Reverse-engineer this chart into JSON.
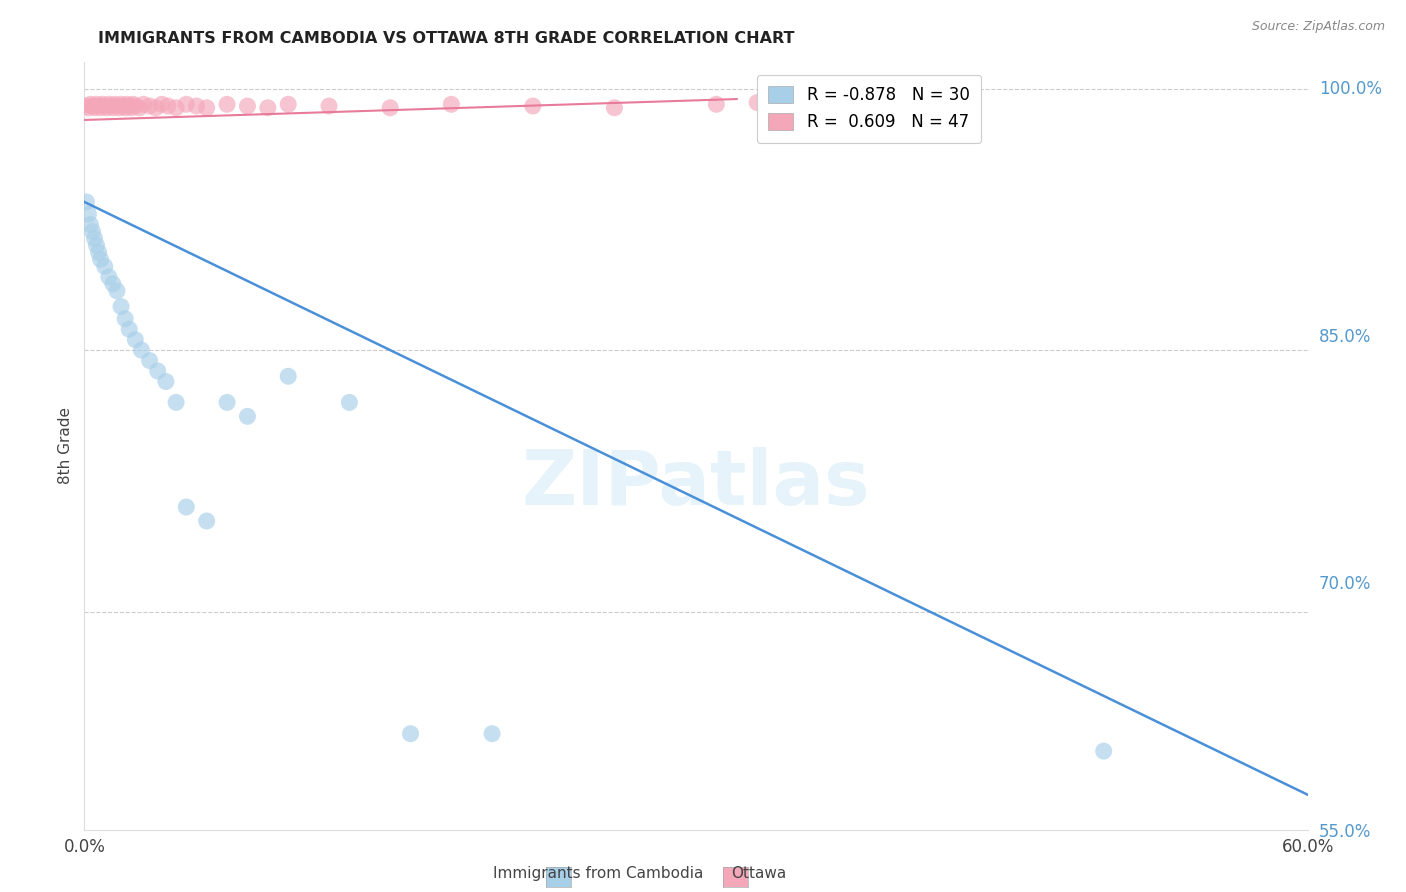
{
  "title": "IMMIGRANTS FROM CAMBODIA VS OTTAWA 8TH GRADE CORRELATION CHART",
  "source": "Source: ZipAtlas.com",
  "ylabel": "8th Grade",
  "yticks_right": [
    1.0,
    0.85,
    0.7,
    0.55
  ],
  "ytick_labels_right": [
    "100.0%",
    "85.0%",
    "70.0%",
    "55.0%"
  ],
  "legend_label1": "Immigrants from Cambodia",
  "legend_label2": "Ottawa",
  "R1": -0.878,
  "N1": 30,
  "R2": 0.609,
  "N2": 47,
  "blue_color": "#a8cfe8",
  "pink_color": "#f4a7b9",
  "blue_line_color": "#4a90d9",
  "pink_line_color": "#e87a9a",
  "xmin": 0.0,
  "xmax": 0.6,
  "ymin": 0.575,
  "ymax": 1.015,
  "blue_line_x0": 0.0,
  "blue_line_y0": 0.935,
  "blue_line_x1": 0.6,
  "blue_line_y1": 0.595,
  "pink_line_x0": 0.0,
  "pink_line_y0": 0.982,
  "pink_line_x1": 0.32,
  "pink_line_y1": 0.994,
  "blue_x": [
    0.001,
    0.002,
    0.003,
    0.004,
    0.005,
    0.006,
    0.007,
    0.008,
    0.01,
    0.012,
    0.014,
    0.016,
    0.018,
    0.02,
    0.022,
    0.025,
    0.028,
    0.032,
    0.036,
    0.04,
    0.045,
    0.05,
    0.06,
    0.07,
    0.08,
    0.1,
    0.13,
    0.16,
    0.2,
    0.5
  ],
  "blue_y": [
    0.935,
    0.928,
    0.922,
    0.918,
    0.914,
    0.91,
    0.906,
    0.902,
    0.898,
    0.892,
    0.888,
    0.884,
    0.875,
    0.868,
    0.862,
    0.856,
    0.85,
    0.844,
    0.838,
    0.832,
    0.82,
    0.76,
    0.752,
    0.82,
    0.812,
    0.835,
    0.82,
    0.63,
    0.63,
    0.62
  ],
  "pink_x": [
    0.001,
    0.002,
    0.003,
    0.004,
    0.005,
    0.006,
    0.007,
    0.008,
    0.009,
    0.01,
    0.011,
    0.012,
    0.013,
    0.014,
    0.015,
    0.016,
    0.017,
    0.018,
    0.019,
    0.02,
    0.021,
    0.022,
    0.023,
    0.024,
    0.025,
    0.027,
    0.029,
    0.032,
    0.035,
    0.038,
    0.041,
    0.045,
    0.05,
    0.055,
    0.06,
    0.07,
    0.08,
    0.09,
    0.1,
    0.12,
    0.15,
    0.18,
    0.22,
    0.26,
    0.31,
    0.33,
    0.35
  ],
  "pink_y": [
    0.99,
    0.989,
    0.991,
    0.99,
    0.989,
    0.991,
    0.99,
    0.989,
    0.991,
    0.99,
    0.989,
    0.991,
    0.99,
    0.989,
    0.991,
    0.99,
    0.989,
    0.991,
    0.99,
    0.989,
    0.991,
    0.99,
    0.989,
    0.991,
    0.99,
    0.989,
    0.991,
    0.99,
    0.989,
    0.991,
    0.99,
    0.989,
    0.991,
    0.99,
    0.989,
    0.991,
    0.99,
    0.989,
    0.991,
    0.99,
    0.989,
    0.991,
    0.99,
    0.989,
    0.991,
    0.992,
    0.99
  ]
}
